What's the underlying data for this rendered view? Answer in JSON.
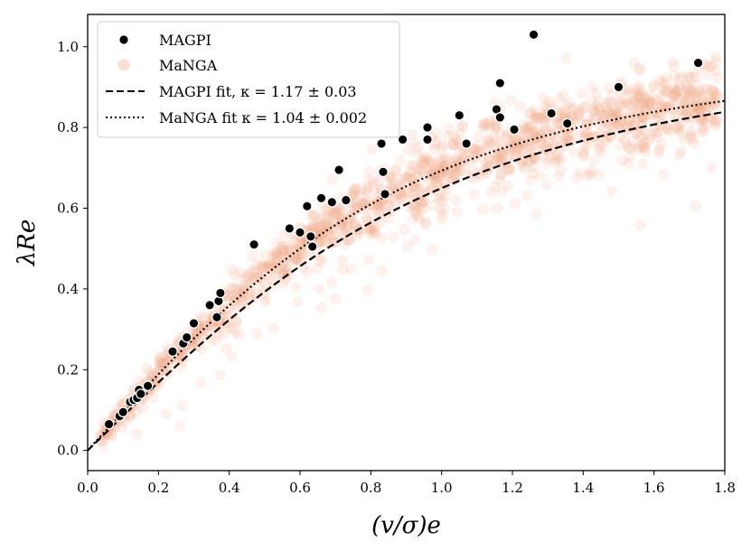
{
  "chart_data": {
    "type": "scatter",
    "title": "",
    "xlabel": "(v/σ)e",
    "ylabel": "λRe",
    "xlim": [
      0.0,
      1.8
    ],
    "ylim": [
      -0.05,
      1.08
    ],
    "xticks": [
      "0.0",
      "0.2",
      "0.4",
      "0.6",
      "0.8",
      "1.0",
      "1.2",
      "1.4",
      "1.6",
      "1.8"
    ],
    "yticks": [
      "0.0",
      "0.2",
      "0.4",
      "0.6",
      "0.8",
      "1.0"
    ],
    "legend_position": "top-left",
    "series": [
      {
        "name": "MAGPI",
        "kind": "scatter",
        "color": "#000000",
        "points": [
          [
            0.06,
            0.065
          ],
          [
            0.09,
            0.085
          ],
          [
            0.1,
            0.095
          ],
          [
            0.12,
            0.12
          ],
          [
            0.13,
            0.125
          ],
          [
            0.14,
            0.13
          ],
          [
            0.145,
            0.15
          ],
          [
            0.15,
            0.14
          ],
          [
            0.17,
            0.16
          ],
          [
            0.24,
            0.245
          ],
          [
            0.27,
            0.265
          ],
          [
            0.28,
            0.28
          ],
          [
            0.3,
            0.315
          ],
          [
            0.345,
            0.36
          ],
          [
            0.365,
            0.33
          ],
          [
            0.37,
            0.37
          ],
          [
            0.375,
            0.39
          ],
          [
            0.47,
            0.51
          ],
          [
            0.57,
            0.55
          ],
          [
            0.6,
            0.54
          ],
          [
            0.62,
            0.605
          ],
          [
            0.63,
            0.53
          ],
          [
            0.635,
            0.505
          ],
          [
            0.66,
            0.625
          ],
          [
            0.69,
            0.615
          ],
          [
            0.71,
            0.695
          ],
          [
            0.73,
            0.62
          ],
          [
            0.83,
            0.76
          ],
          [
            0.835,
            0.69
          ],
          [
            0.84,
            0.635
          ],
          [
            0.89,
            0.77
          ],
          [
            0.96,
            0.8
          ],
          [
            0.96,
            0.77
          ],
          [
            1.05,
            0.83
          ],
          [
            1.07,
            0.76
          ],
          [
            1.155,
            0.845
          ],
          [
            1.165,
            0.825
          ],
          [
            1.165,
            0.91
          ],
          [
            1.205,
            0.795
          ],
          [
            1.26,
            1.03
          ],
          [
            1.31,
            0.835
          ],
          [
            1.355,
            0.81
          ],
          [
            1.5,
            0.9
          ],
          [
            1.725,
            0.96
          ]
        ]
      },
      {
        "name": "MaNGA",
        "kind": "scatter",
        "color": "#f4a582",
        "points": []
      },
      {
        "name": "MAGPI fit,  κ = 1.17 ± 0.03",
        "kind": "line",
        "style": "dashed",
        "kappa": 1.17
      },
      {
        "name": "MaNGA fit  κ = 1.04 ± 0.002",
        "kind": "line",
        "style": "dotted",
        "kappa": 1.04
      }
    ]
  }
}
